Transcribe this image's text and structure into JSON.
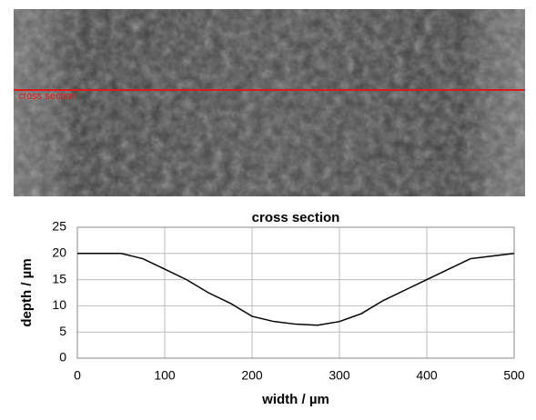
{
  "image": {
    "annotation": "cross section"
  },
  "chart_data": {
    "type": "line",
    "title": "cross section",
    "x_label": "width / µm",
    "y_label": "depth / µm",
    "x": [
      0,
      25,
      50,
      75,
      100,
      125,
      150,
      175,
      200,
      225,
      250,
      275,
      300,
      325,
      350,
      375,
      400,
      425,
      450,
      475,
      500
    ],
    "values": [
      20,
      20,
      20,
      19,
      17,
      15,
      12.5,
      10.5,
      8,
      7,
      6.5,
      6.3,
      7,
      8.5,
      11,
      13,
      15,
      17,
      19,
      19.5,
      20
    ],
    "color": "#000000",
    "xlim": [
      0,
      500
    ],
    "xticks": [
      0,
      100,
      200,
      300,
      400,
      500
    ],
    "ylim": [
      0,
      25
    ],
    "yticks": [
      0,
      5,
      10,
      15,
      20,
      25
    ],
    "grid": true
  }
}
